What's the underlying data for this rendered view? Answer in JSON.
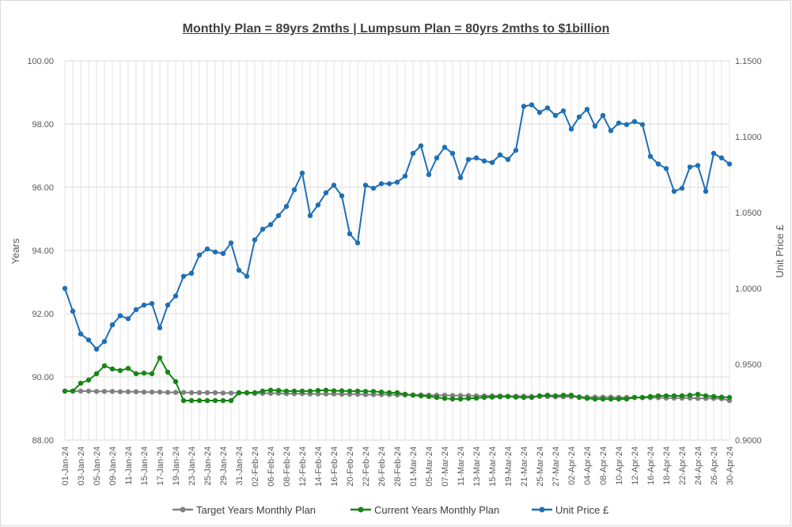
{
  "chart_data": {
    "type": "line",
    "title": "Monthly Plan = 89yrs 2mths | Lumpsum Plan = 80yrs 2mths to $1billion",
    "ylabel": "Years",
    "y2label": "Unit Price £",
    "ylim": [
      88,
      100
    ],
    "y2lim": [
      0.9,
      1.15
    ],
    "yticks": [
      "88.00",
      "90.00",
      "92.00",
      "94.00",
      "96.00",
      "98.00",
      "100.00"
    ],
    "y2ticks": [
      "0.9000",
      "0.9500",
      "1.0000",
      "1.0500",
      "1.1000",
      "1.1500"
    ],
    "xtick_labels": [
      "01-Jan-24",
      "03-Jan-24",
      "05-Jan-24",
      "09-Jan-24",
      "11-Jan-24",
      "15-Jan-24",
      "17-Jan-24",
      "19-Jan-24",
      "23-Jan-24",
      "25-Jan-24",
      "29-Jan-24",
      "31-Jan-24",
      "02-Feb-24",
      "06-Feb-24",
      "08-Feb-24",
      "12-Feb-24",
      "14-Feb-24",
      "16-Feb-24",
      "20-Feb-24",
      "22-Feb-24",
      "26-Feb-24",
      "28-Feb-24",
      "01-Mar-24",
      "05-Mar-24",
      "07-Mar-24",
      "11-Mar-24",
      "13-Mar-24",
      "15-Mar-24",
      "19-Mar-24",
      "21-Mar-24",
      "25-Mar-24",
      "27-Mar-24",
      "02-Apr-24",
      "04-Apr-24",
      "08-Apr-24",
      "10-Apr-24",
      "12-Apr-24",
      "16-Apr-24",
      "18-Apr-24",
      "22-Apr-24",
      "24-Apr-24",
      "26-Apr-24",
      "30-Apr-24"
    ],
    "points_count": 85,
    "series": [
      {
        "name": "Target Years Monthly Plan",
        "axis": "left",
        "color": "#808080",
        "values": [
          89.55,
          89.55,
          89.55,
          89.55,
          89.54,
          89.54,
          89.54,
          89.53,
          89.53,
          89.53,
          89.52,
          89.52,
          89.52,
          89.51,
          89.51,
          89.51,
          89.5,
          89.5,
          89.5,
          89.5,
          89.49,
          89.49,
          89.49,
          89.49,
          89.48,
          89.48,
          89.48,
          89.48,
          89.47,
          89.47,
          89.47,
          89.46,
          89.46,
          89.46,
          89.46,
          89.45,
          89.45,
          89.45,
          89.44,
          89.44,
          89.44,
          89.44,
          89.43,
          89.43,
          89.43,
          89.43,
          89.42,
          89.42,
          89.42,
          89.41,
          89.41,
          89.41,
          89.4,
          89.4,
          89.4,
          89.4,
          89.39,
          89.39,
          89.39,
          89.38,
          89.38,
          89.38,
          89.37,
          89.37,
          89.37,
          89.37,
          89.36,
          89.36,
          89.36,
          89.36,
          89.35,
          89.35,
          89.35,
          89.34,
          89.34,
          89.34,
          89.33,
          89.33,
          89.33,
          89.33,
          89.32,
          89.32,
          89.32,
          89.31,
          89.25
        ]
      },
      {
        "name": "Current Years Monthly Plan",
        "axis": "left",
        "color": "#168516",
        "values": [
          89.55,
          89.55,
          89.8,
          89.9,
          90.1,
          90.35,
          90.25,
          90.2,
          90.27,
          90.1,
          90.12,
          90.1,
          90.6,
          90.15,
          89.85,
          89.25,
          89.25,
          89.25,
          89.25,
          89.25,
          89.25,
          89.25,
          89.5,
          89.5,
          89.5,
          89.55,
          89.58,
          89.57,
          89.55,
          89.55,
          89.55,
          89.55,
          89.57,
          89.58,
          89.56,
          89.56,
          89.55,
          89.55,
          89.54,
          89.54,
          89.52,
          89.5,
          89.5,
          89.45,
          89.42,
          89.4,
          89.38,
          89.35,
          89.32,
          89.3,
          89.3,
          89.32,
          89.33,
          89.35,
          89.36,
          89.37,
          89.38,
          89.36,
          89.35,
          89.35,
          89.4,
          89.42,
          89.4,
          89.42,
          89.42,
          89.35,
          89.32,
          89.3,
          89.3,
          89.3,
          89.3,
          89.3,
          89.35,
          89.35,
          89.38,
          89.4,
          89.4,
          89.4,
          89.4,
          89.42,
          89.45,
          89.4,
          89.38,
          89.36,
          89.35
        ]
      },
      {
        "name": "Unit Price £",
        "axis": "right",
        "color": "#1f6fb5",
        "values": [
          1.0,
          0.985,
          0.97,
          0.966,
          0.96,
          0.965,
          0.976,
          0.982,
          0.98,
          0.986,
          0.989,
          0.99,
          0.974,
          0.989,
          0.995,
          1.008,
          1.01,
          1.022,
          1.026,
          1.024,
          1.023,
          1.03,
          1.012,
          1.008,
          1.032,
          1.039,
          1.042,
          1.048,
          1.054,
          1.065,
          1.076,
          1.048,
          1.055,
          1.063,
          1.068,
          1.061,
          1.036,
          1.03,
          1.068,
          1.066,
          1.069,
          1.069,
          1.07,
          1.074,
          1.089,
          1.094,
          1.075,
          1.086,
          1.093,
          1.089,
          1.073,
          1.085,
          1.086,
          1.084,
          1.083,
          1.088,
          1.085,
          1.091,
          1.12,
          1.121,
          1.116,
          1.119,
          1.114,
          1.117,
          1.105,
          1.113,
          1.118,
          1.107,
          1.114,
          1.104,
          1.109,
          1.108,
          1.11,
          1.108,
          1.087,
          1.082,
          1.079,
          1.064,
          1.066,
          1.08,
          1.081,
          1.064,
          1.089,
          1.086,
          1.082
        ]
      }
    ],
    "legend_position": "bottom"
  }
}
